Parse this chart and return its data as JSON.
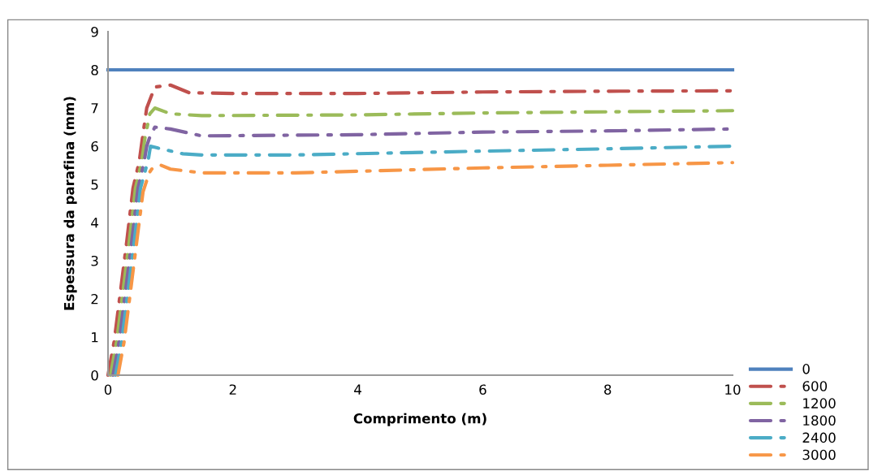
{
  "chart_data": {
    "type": "line",
    "xlabel": "Comprimento (m)",
    "ylabel": "Espessura da parafina (mm)",
    "xlim": [
      0,
      10
    ],
    "xticks": [
      0,
      2,
      4,
      6,
      8,
      10
    ],
    "ylim": [
      0,
      9
    ],
    "yticks": [
      0,
      1,
      2,
      3,
      4,
      5,
      6,
      7,
      8,
      9
    ],
    "grid": false,
    "legend": "bottom right",
    "marker": "none",
    "series": [
      {
        "name": "0",
        "color": "#4f81bd",
        "line_style": "solid",
        "x": [
          0,
          10
        ],
        "values": [
          8,
          8
        ]
      },
      {
        "name": "600",
        "color": "#c0504d",
        "line_style": "dashed",
        "x": [
          0,
          0.1,
          0.2,
          0.3,
          0.4,
          0.5,
          0.55,
          0.62,
          0.75,
          1.0,
          1.3,
          2,
          4,
          6,
          8,
          10
        ],
        "values": [
          0,
          0.9,
          2.2,
          3.5,
          4.9,
          5.6,
          6.2,
          7.0,
          7.55,
          7.6,
          7.4,
          7.38,
          7.38,
          7.42,
          7.44,
          7.45
        ]
      },
      {
        "name": "1200",
        "color": "#9bbb59",
        "line_style": "dashed",
        "x": [
          0.04,
          0.14,
          0.24,
          0.34,
          0.44,
          0.54,
          0.59,
          0.67,
          0.75,
          1.0,
          1.5,
          4,
          6,
          8,
          10
        ],
        "values": [
          0,
          0.9,
          2.2,
          3.5,
          4.9,
          5.6,
          6.2,
          6.85,
          7.0,
          6.85,
          6.8,
          6.82,
          6.87,
          6.9,
          6.93
        ]
      },
      {
        "name": "1800",
        "color": "#8064a2",
        "line_style": "dashed",
        "x": [
          0.08,
          0.18,
          0.28,
          0.38,
          0.48,
          0.58,
          0.62,
          0.66,
          0.75,
          1.0,
          1.5,
          4,
          6,
          8,
          10
        ],
        "values": [
          0,
          0.9,
          2.2,
          3.5,
          4.9,
          5.6,
          6.0,
          6.2,
          6.5,
          6.45,
          6.27,
          6.3,
          6.37,
          6.4,
          6.45
        ]
      },
      {
        "name": "2400",
        "color": "#4bacc6",
        "line_style": "dashed",
        "x": [
          0.12,
          0.22,
          0.32,
          0.42,
          0.52,
          0.62,
          0.64,
          0.68,
          0.8,
          1.2,
          1.5,
          3,
          6,
          8,
          10
        ],
        "values": [
          0,
          0.9,
          2.2,
          3.5,
          4.9,
          5.5,
          5.6,
          6.0,
          5.95,
          5.8,
          5.77,
          5.77,
          5.87,
          5.93,
          6.0
        ]
      },
      {
        "name": "3000",
        "color": "#f79646",
        "line_style": "dashed",
        "x": [
          0.16,
          0.26,
          0.36,
          0.46,
          0.56,
          0.66,
          0.7,
          0.75,
          0.85,
          1.0,
          1.5,
          3,
          6,
          8,
          10
        ],
        "values": [
          0,
          0.9,
          2.2,
          3.5,
          4.8,
          5.3,
          5.4,
          5.45,
          5.5,
          5.4,
          5.3,
          5.3,
          5.43,
          5.5,
          5.57
        ]
      }
    ]
  }
}
